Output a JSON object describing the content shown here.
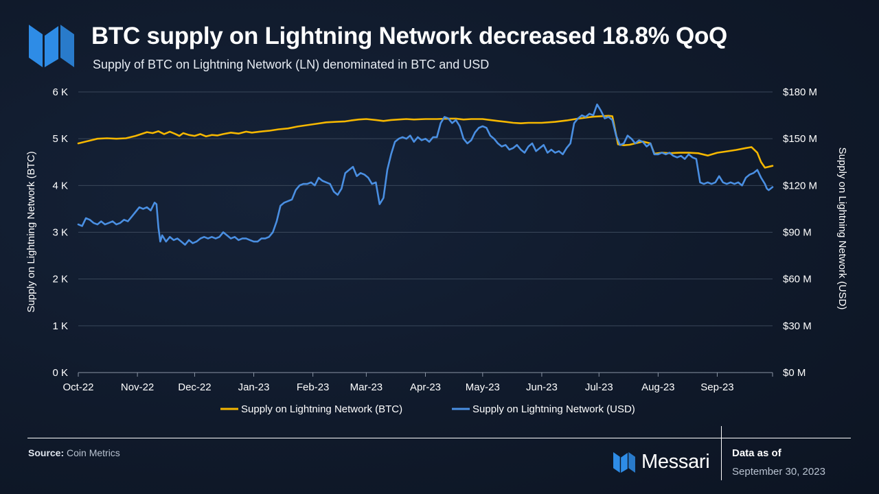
{
  "header": {
    "title": "BTC supply on Lightning Network decreased 18.8% QoQ",
    "subtitle": "Supply of BTC on Lightning Network (LN) denominated in BTC and USD"
  },
  "footer": {
    "source_label": "Source:",
    "source_value": "Coin Metrics",
    "brand": "Messari",
    "as_of_label": "Data as of",
    "as_of_date": "September 30, 2023"
  },
  "colors": {
    "btc": "#F5B700",
    "usd": "#4A8FE2",
    "grid": "#3A475A",
    "text": "#FFFFFF",
    "logo": "#2E8CE6"
  },
  "chart_data": {
    "type": "line",
    "x_tick_labels": [
      "Oct-22",
      "Nov-22",
      "Dec-22",
      "Jan-23",
      "Feb-23",
      "Mar-23",
      "Apr-23",
      "May-23",
      "Jun-23",
      "Jul-23",
      "Aug-23",
      "Sep-23"
    ],
    "x_tick_days": [
      0,
      31,
      61,
      92,
      123,
      151,
      182,
      212,
      243,
      273,
      304,
      335
    ],
    "x_range_days": [
      0,
      364
    ],
    "ylabel_left": "Supply on Lightning Network (BTC)",
    "ylabel_right": "Supply on Lightning Network (USD)",
    "y_left_ticks": [
      "0 K",
      "1 K",
      "2 K",
      "3 K",
      "4 K",
      "5 K",
      "6 K"
    ],
    "y_left_range": [
      0,
      6000
    ],
    "y_right_ticks": [
      "$0 M",
      "$30 M",
      "$60 M",
      "$90 M",
      "$120 M",
      "$150 M",
      "$180 M"
    ],
    "y_right_range": [
      0,
      180
    ],
    "legend_position": "bottom-center",
    "series": [
      {
        "name": "Supply on Lightning Network (BTC)",
        "axis": "left",
        "points": [
          [
            0,
            4900
          ],
          [
            5,
            4950
          ],
          [
            10,
            5000
          ],
          [
            15,
            5010
          ],
          [
            20,
            5000
          ],
          [
            25,
            5010
          ],
          [
            30,
            5060
          ],
          [
            33,
            5100
          ],
          [
            36,
            5140
          ],
          [
            39,
            5120
          ],
          [
            42,
            5160
          ],
          [
            45,
            5100
          ],
          [
            48,
            5150
          ],
          [
            51,
            5100
          ],
          [
            53,
            5060
          ],
          [
            55,
            5120
          ],
          [
            58,
            5080
          ],
          [
            61,
            5060
          ],
          [
            64,
            5100
          ],
          [
            67,
            5050
          ],
          [
            70,
            5080
          ],
          [
            73,
            5070
          ],
          [
            76,
            5100
          ],
          [
            80,
            5130
          ],
          [
            84,
            5110
          ],
          [
            88,
            5150
          ],
          [
            91,
            5130
          ],
          [
            95,
            5150
          ],
          [
            100,
            5170
          ],
          [
            105,
            5200
          ],
          [
            110,
            5220
          ],
          [
            115,
            5260
          ],
          [
            120,
            5290
          ],
          [
            125,
            5320
          ],
          [
            130,
            5350
          ],
          [
            135,
            5360
          ],
          [
            140,
            5370
          ],
          [
            143,
            5390
          ],
          [
            147,
            5410
          ],
          [
            151,
            5420
          ],
          [
            156,
            5400
          ],
          [
            160,
            5380
          ],
          [
            164,
            5400
          ],
          [
            168,
            5410
          ],
          [
            172,
            5420
          ],
          [
            176,
            5410
          ],
          [
            182,
            5420
          ],
          [
            188,
            5420
          ],
          [
            194,
            5430
          ],
          [
            198,
            5430
          ],
          [
            202,
            5410
          ],
          [
            206,
            5420
          ],
          [
            212,
            5420
          ],
          [
            216,
            5400
          ],
          [
            220,
            5380
          ],
          [
            224,
            5360
          ],
          [
            228,
            5340
          ],
          [
            232,
            5330
          ],
          [
            236,
            5340
          ],
          [
            243,
            5340
          ],
          [
            250,
            5360
          ],
          [
            256,
            5390
          ],
          [
            262,
            5430
          ],
          [
            266,
            5450
          ],
          [
            270,
            5470
          ],
          [
            274,
            5480
          ],
          [
            278,
            5490
          ],
          [
            280,
            5480
          ],
          [
            283,
            4880
          ],
          [
            286,
            4860
          ],
          [
            289,
            4870
          ],
          [
            292,
            4900
          ],
          [
            296,
            4940
          ],
          [
            300,
            4900
          ],
          [
            302,
            4680
          ],
          [
            306,
            4700
          ],
          [
            310,
            4690
          ],
          [
            315,
            4700
          ],
          [
            320,
            4700
          ],
          [
            325,
            4690
          ],
          [
            330,
            4640
          ],
          [
            335,
            4700
          ],
          [
            340,
            4730
          ],
          [
            345,
            4760
          ],
          [
            350,
            4800
          ],
          [
            353,
            4820
          ],
          [
            356,
            4700
          ],
          [
            358,
            4500
          ],
          [
            360,
            4380
          ],
          [
            364,
            4420
          ]
        ]
      },
      {
        "name": "Supply on Lightning Network (USD)",
        "axis": "right",
        "points": [
          [
            0,
            95
          ],
          [
            2,
            94
          ],
          [
            4,
            99
          ],
          [
            6,
            98
          ],
          [
            8,
            96
          ],
          [
            10,
            95
          ],
          [
            12,
            97
          ],
          [
            14,
            95
          ],
          [
            16,
            96
          ],
          [
            18,
            97
          ],
          [
            20,
            95
          ],
          [
            22,
            96
          ],
          [
            24,
            98
          ],
          [
            26,
            97
          ],
          [
            28,
            100
          ],
          [
            30,
            103
          ],
          [
            32,
            106
          ],
          [
            34,
            105
          ],
          [
            36,
            106
          ],
          [
            38,
            104
          ],
          [
            40,
            109
          ],
          [
            41,
            108
          ],
          [
            42,
            93
          ],
          [
            43,
            84
          ],
          [
            44,
            88
          ],
          [
            46,
            84
          ],
          [
            48,
            87
          ],
          [
            50,
            85
          ],
          [
            52,
            86
          ],
          [
            54,
            84
          ],
          [
            56,
            82
          ],
          [
            58,
            85
          ],
          [
            60,
            83
          ],
          [
            62,
            84
          ],
          [
            64,
            86
          ],
          [
            66,
            87
          ],
          [
            68,
            86
          ],
          [
            70,
            87
          ],
          [
            72,
            86
          ],
          [
            74,
            87
          ],
          [
            76,
            90
          ],
          [
            78,
            88
          ],
          [
            80,
            86
          ],
          [
            82,
            87
          ],
          [
            84,
            85
          ],
          [
            86,
            86
          ],
          [
            88,
            86
          ],
          [
            90,
            85
          ],
          [
            92,
            84
          ],
          [
            94,
            84
          ],
          [
            96,
            86
          ],
          [
            98,
            86
          ],
          [
            100,
            87
          ],
          [
            102,
            90
          ],
          [
            104,
            97
          ],
          [
            106,
            107
          ],
          [
            108,
            109
          ],
          [
            110,
            110
          ],
          [
            112,
            111
          ],
          [
            114,
            117
          ],
          [
            116,
            120
          ],
          [
            118,
            121
          ],
          [
            120,
            121
          ],
          [
            122,
            122
          ],
          [
            124,
            120
          ],
          [
            126,
            125
          ],
          [
            128,
            123
          ],
          [
            130,
            122
          ],
          [
            132,
            121
          ],
          [
            134,
            116
          ],
          [
            136,
            114
          ],
          [
            138,
            118
          ],
          [
            140,
            128
          ],
          [
            142,
            130
          ],
          [
            144,
            132
          ],
          [
            146,
            126
          ],
          [
            148,
            128
          ],
          [
            150,
            127
          ],
          [
            152,
            125
          ],
          [
            154,
            121
          ],
          [
            156,
            122
          ],
          [
            158,
            108
          ],
          [
            160,
            112
          ],
          [
            162,
            130
          ],
          [
            164,
            140
          ],
          [
            166,
            148
          ],
          [
            168,
            150
          ],
          [
            170,
            151
          ],
          [
            172,
            150
          ],
          [
            174,
            152
          ],
          [
            176,
            148
          ],
          [
            178,
            151
          ],
          [
            180,
            149
          ],
          [
            182,
            150
          ],
          [
            184,
            148
          ],
          [
            186,
            151
          ],
          [
            188,
            151
          ],
          [
            190,
            160
          ],
          [
            192,
            164
          ],
          [
            194,
            163
          ],
          [
            196,
            160
          ],
          [
            198,
            162
          ],
          [
            200,
            158
          ],
          [
            202,
            150
          ],
          [
            204,
            147
          ],
          [
            206,
            149
          ],
          [
            208,
            154
          ],
          [
            210,
            157
          ],
          [
            212,
            158
          ],
          [
            214,
            157
          ],
          [
            216,
            152
          ],
          [
            218,
            150
          ],
          [
            220,
            147
          ],
          [
            222,
            145
          ],
          [
            224,
            146
          ],
          [
            226,
            143
          ],
          [
            228,
            144
          ],
          [
            230,
            146
          ],
          [
            232,
            143
          ],
          [
            234,
            141
          ],
          [
            236,
            145
          ],
          [
            238,
            147
          ],
          [
            240,
            142
          ],
          [
            242,
            144
          ],
          [
            244,
            146
          ],
          [
            246,
            141
          ],
          [
            248,
            143
          ],
          [
            250,
            141
          ],
          [
            252,
            142
          ],
          [
            254,
            140
          ],
          [
            256,
            144
          ],
          [
            258,
            147
          ],
          [
            260,
            160
          ],
          [
            262,
            163
          ],
          [
            264,
            165
          ],
          [
            266,
            164
          ],
          [
            268,
            166
          ],
          [
            270,
            165
          ],
          [
            272,
            172
          ],
          [
            274,
            168
          ],
          [
            276,
            163
          ],
          [
            278,
            164
          ],
          [
            280,
            162
          ],
          [
            282,
            152
          ],
          [
            284,
            146
          ],
          [
            286,
            147
          ],
          [
            288,
            152
          ],
          [
            290,
            150
          ],
          [
            292,
            147
          ],
          [
            294,
            149
          ],
          [
            296,
            148
          ],
          [
            298,
            145
          ],
          [
            300,
            147
          ],
          [
            302,
            140
          ],
          [
            304,
            140
          ],
          [
            306,
            141
          ],
          [
            308,
            140
          ],
          [
            310,
            141
          ],
          [
            312,
            139
          ],
          [
            314,
            138
          ],
          [
            316,
            139
          ],
          [
            318,
            137
          ],
          [
            320,
            140
          ],
          [
            322,
            138
          ],
          [
            324,
            137
          ],
          [
            326,
            122
          ],
          [
            328,
            121
          ],
          [
            330,
            122
          ],
          [
            332,
            121
          ],
          [
            334,
            122
          ],
          [
            336,
            126
          ],
          [
            338,
            122
          ],
          [
            340,
            121
          ],
          [
            342,
            122
          ],
          [
            344,
            121
          ],
          [
            346,
            122
          ],
          [
            348,
            120
          ],
          [
            350,
            125
          ],
          [
            352,
            127
          ],
          [
            354,
            128
          ],
          [
            356,
            130
          ],
          [
            358,
            125
          ],
          [
            360,
            121
          ],
          [
            361,
            118
          ],
          [
            362,
            117
          ],
          [
            363,
            118
          ],
          [
            364,
            119
          ]
        ]
      }
    ]
  }
}
